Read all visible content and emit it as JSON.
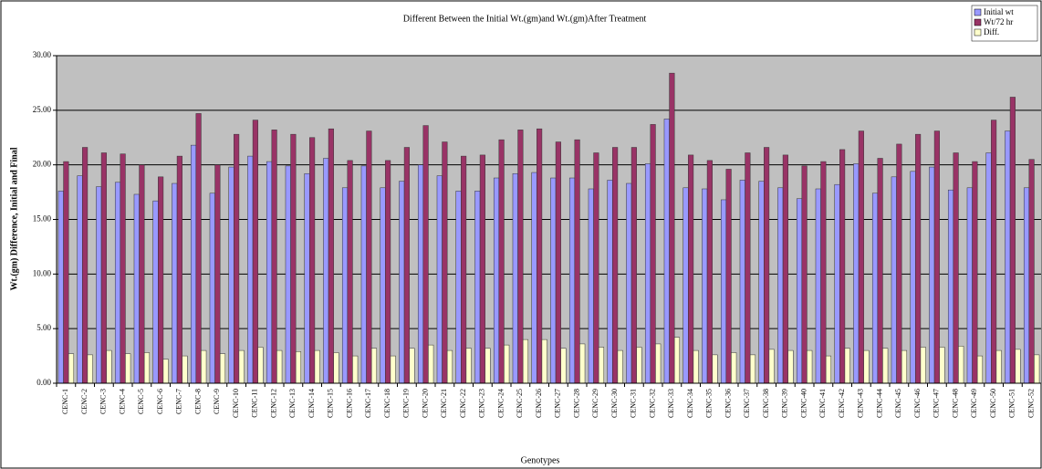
{
  "chart_data": {
    "type": "bar",
    "title": "Different Between the Initial Wt.(gm)and Wt.(gm)After Treatment",
    "x_label": "Genotypes",
    "y_label": "Wt.(gm) Difference, Initial and Final",
    "categories": [
      "CENC-1",
      "CENC-2",
      "CENC-3",
      "CENC-4",
      "CENC-5",
      "CENC-6",
      "CENC-7",
      "CENC-8",
      "CENC-9",
      "CENC-10",
      "CENC-11",
      "CENC-12",
      "CENC-13",
      "CENC-14",
      "CENC-15",
      "CENC-16",
      "CENC-17",
      "CENC-18",
      "CENC-19",
      "CENC-20",
      "CENC-21",
      "CENC-22",
      "CENC-23",
      "CENC-24",
      "CENC-25",
      "CENC-26",
      "CENC-27",
      "CENC-28",
      "CENC-29",
      "CENC-30",
      "CENC-31",
      "CENC-32",
      "CENC-33",
      "CENC-34",
      "CENC-35",
      "CENC-36",
      "CENC-37",
      "CENC-38",
      "CENC-39",
      "CENC-40",
      "CENC-41",
      "CENC-42",
      "CENC-43",
      "CENC-44",
      "CENC-45",
      "CENC-46",
      "CENC-47",
      "CENC-48",
      "CENC-49",
      "CENC-50",
      "CENC-51",
      "CENC-52"
    ],
    "series": [
      {
        "name": "Initial wt",
        "color": "#9999ff",
        "values": [
          17.6,
          19.0,
          18.0,
          18.4,
          17.3,
          16.7,
          18.3,
          21.8,
          17.4,
          19.8,
          20.8,
          20.3,
          19.9,
          19.2,
          20.6,
          17.9,
          19.9,
          17.9,
          18.5,
          20.0,
          19.0,
          17.6,
          17.6,
          18.8,
          19.2,
          19.3,
          18.8,
          18.8,
          17.8,
          18.6,
          18.3,
          20.1,
          24.2,
          17.9,
          17.8,
          16.8,
          18.6,
          18.5,
          17.9,
          16.9,
          17.8,
          18.2,
          20.1,
          17.4,
          18.9,
          19.4,
          19.8,
          17.7,
          17.9,
          21.1,
          23.1,
          17.9
        ]
      },
      {
        "name": "Wt/72 hr",
        "color": "#993366",
        "values": [
          20.3,
          21.6,
          21.1,
          21.0,
          20.0,
          18.9,
          20.8,
          24.7,
          20.0,
          22.8,
          24.1,
          23.2,
          22.8,
          22.5,
          23.3,
          20.4,
          23.1,
          20.4,
          21.6,
          23.6,
          22.1,
          20.8,
          20.9,
          22.3,
          23.2,
          23.3,
          22.1,
          22.3,
          21.1,
          21.6,
          21.6,
          23.7,
          28.4,
          20.9,
          20.4,
          19.6,
          21.1,
          21.6,
          20.9,
          19.9,
          20.3,
          21.4,
          23.1,
          20.6,
          21.9,
          22.8,
          23.1,
          21.1,
          20.3,
          24.1,
          26.2,
          20.5
        ]
      },
      {
        "name": "Diff.",
        "color": "#ffffcc",
        "values": [
          2.7,
          2.6,
          3.0,
          2.7,
          2.8,
          2.2,
          2.5,
          3.0,
          2.7,
          3.0,
          3.3,
          3.0,
          2.9,
          3.0,
          2.8,
          2.5,
          3.2,
          2.5,
          3.2,
          3.5,
          3.0,
          3.2,
          3.2,
          3.5,
          4.0,
          4.0,
          3.2,
          3.6,
          3.3,
          3.0,
          3.3,
          3.6,
          4.2,
          3.0,
          2.6,
          2.8,
          2.6,
          3.1,
          3.0,
          3.0,
          2.5,
          3.2,
          3.0,
          3.2,
          3.0,
          3.3,
          3.3,
          3.4,
          2.5,
          3.0,
          3.1,
          2.6
        ]
      }
    ],
    "ylim": [
      0,
      30
    ],
    "yticks": [
      {
        "value": 0,
        "label": "0.00"
      },
      {
        "value": 5,
        "label": "5.00"
      },
      {
        "value": 10,
        "label": "10.00"
      },
      {
        "value": 15,
        "label": "15.00"
      },
      {
        "value": 20,
        "label": "20.00"
      },
      {
        "value": 25,
        "label": "25.00"
      },
      {
        "value": 30,
        "label": "30.00"
      }
    ],
    "grid": true,
    "legend": "top-right"
  }
}
